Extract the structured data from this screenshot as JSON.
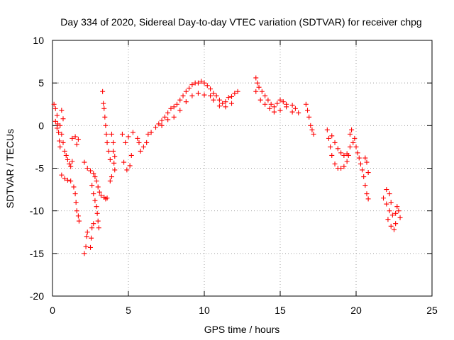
{
  "chart_data": {
    "type": "scatter",
    "title": "Day 334 of 2020, Sidereal Day-to-day VTEC variation (SDTVAR) for receiver chpg",
    "xlabel": "GPS time / hours",
    "ylabel": "SDTVAR / TECUs",
    "xlim": [
      0,
      25
    ],
    "ylim": [
      -20,
      10
    ],
    "xticks": [
      "0",
      "5",
      "10",
      "15",
      "20",
      "25"
    ],
    "yticks": [
      "10",
      "5",
      "0",
      "-5",
      "-10",
      "-15",
      "-20"
    ],
    "grid": true,
    "marker": "plus",
    "color": "#ff0000",
    "series": [
      {
        "name": "SDTVAR",
        "points": [
          [
            0.1,
            2.5
          ],
          [
            0.2,
            2.0
          ],
          [
            0.3,
            1.2
          ],
          [
            0.35,
            0.2
          ],
          [
            0.4,
            -0.8
          ],
          [
            0.45,
            -1.8
          ],
          [
            0.5,
            -2.5
          ],
          [
            0.2,
            0.5
          ],
          [
            0.3,
            -0.3
          ],
          [
            0.5,
            0.0
          ],
          [
            0.6,
            -1.0
          ],
          [
            0.7,
            -2.0
          ],
          [
            0.8,
            -3.0
          ],
          [
            0.9,
            -3.5
          ],
          [
            1.0,
            -4.0
          ],
          [
            1.1,
            -4.5
          ],
          [
            1.2,
            -4.8
          ],
          [
            1.3,
            -4.2
          ],
          [
            0.6,
            1.8
          ],
          [
            0.7,
            0.8
          ],
          [
            0.6,
            -5.8
          ],
          [
            0.8,
            -6.2
          ],
          [
            1.0,
            -6.4
          ],
          [
            1.2,
            -6.5
          ],
          [
            1.4,
            -7.2
          ],
          [
            1.5,
            -8.0
          ],
          [
            1.55,
            -9.0
          ],
          [
            1.6,
            -10.0
          ],
          [
            1.7,
            -10.6
          ],
          [
            1.75,
            -11.2
          ],
          [
            1.3,
            -1.5
          ],
          [
            1.5,
            -1.3
          ],
          [
            1.7,
            -1.6
          ],
          [
            1.6,
            -2.2
          ],
          [
            2.1,
            -15.0
          ],
          [
            2.2,
            -14.2
          ],
          [
            2.25,
            -13.0
          ],
          [
            2.3,
            -12.5
          ],
          [
            2.5,
            -14.3
          ],
          [
            2.55,
            -13.2
          ],
          [
            2.6,
            -12.0
          ],
          [
            2.7,
            -11.5
          ],
          [
            2.1,
            -4.3
          ],
          [
            2.3,
            -5.0
          ],
          [
            2.5,
            -5.3
          ],
          [
            2.7,
            -5.6
          ],
          [
            2.8,
            -6.0
          ],
          [
            2.9,
            -6.5
          ],
          [
            3.0,
            -7.2
          ],
          [
            3.1,
            -7.8
          ],
          [
            3.2,
            -8.2
          ],
          [
            3.4,
            -8.4
          ],
          [
            3.5,
            -8.6
          ],
          [
            3.6,
            -8.5
          ],
          [
            2.6,
            -7.0
          ],
          [
            2.7,
            -8.0
          ],
          [
            2.8,
            -8.8
          ],
          [
            2.9,
            -9.5
          ],
          [
            2.95,
            -10.3
          ],
          [
            3.0,
            -11.2
          ],
          [
            3.05,
            -12.0
          ],
          [
            3.3,
            4.0
          ],
          [
            3.35,
            2.6
          ],
          [
            3.4,
            2.0
          ],
          [
            3.45,
            1.0
          ],
          [
            3.5,
            0.0
          ],
          [
            3.55,
            -1.0
          ],
          [
            3.6,
            -2.0
          ],
          [
            3.7,
            -3.0
          ],
          [
            3.8,
            -4.0
          ],
          [
            3.9,
            -1.0
          ],
          [
            4.0,
            -2.0
          ],
          [
            4.0,
            -3.0
          ],
          [
            4.1,
            -3.6
          ],
          [
            4.05,
            -4.4
          ],
          [
            4.1,
            -5.2
          ],
          [
            3.9,
            -6.0
          ],
          [
            3.8,
            -6.5
          ],
          [
            4.6,
            -1.0
          ],
          [
            4.8,
            -2.0
          ],
          [
            4.7,
            -4.3
          ],
          [
            4.9,
            -5.2
          ],
          [
            5.1,
            -4.7
          ],
          [
            5.2,
            -3.5
          ],
          [
            5.0,
            -1.3
          ],
          [
            5.3,
            -0.8
          ],
          [
            5.6,
            -1.5
          ],
          [
            5.7,
            -2.0
          ],
          [
            5.8,
            -3.0
          ],
          [
            6.0,
            -2.5
          ],
          [
            6.2,
            -2.0
          ],
          [
            6.3,
            -1.0
          ],
          [
            6.5,
            -0.8
          ],
          [
            6.8,
            -0.2
          ],
          [
            7.0,
            0.2
          ],
          [
            7.2,
            0.6
          ],
          [
            7.4,
            1.0
          ],
          [
            7.6,
            1.5
          ],
          [
            7.8,
            2.0
          ],
          [
            8.0,
            2.2
          ],
          [
            8.2,
            2.5
          ],
          [
            8.4,
            3.0
          ],
          [
            8.6,
            3.5
          ],
          [
            8.8,
            4.0
          ],
          [
            9.0,
            4.4
          ],
          [
            9.2,
            4.8
          ],
          [
            9.4,
            5.0
          ],
          [
            9.6,
            5.0
          ],
          [
            9.8,
            5.2
          ],
          [
            10.0,
            5.0
          ],
          [
            10.2,
            4.7
          ],
          [
            10.4,
            4.3
          ],
          [
            7.2,
            0.0
          ],
          [
            7.6,
            0.7
          ],
          [
            8.0,
            1.0
          ],
          [
            8.4,
            1.8
          ],
          [
            8.8,
            2.8
          ],
          [
            9.2,
            3.5
          ],
          [
            9.6,
            3.8
          ],
          [
            10.0,
            3.6
          ],
          [
            10.4,
            3.5
          ],
          [
            10.6,
            3.8
          ],
          [
            10.8,
            3.5
          ],
          [
            11.0,
            3.0
          ],
          [
            11.2,
            2.6
          ],
          [
            11.4,
            2.8
          ],
          [
            11.6,
            3.3
          ],
          [
            11.8,
            3.4
          ],
          [
            12.0,
            3.8
          ],
          [
            12.2,
            4.0
          ],
          [
            10.6,
            3.0
          ],
          [
            11.0,
            2.3
          ],
          [
            11.4,
            2.2
          ],
          [
            11.8,
            2.6
          ],
          [
            13.4,
            5.6
          ],
          [
            13.5,
            5.0
          ],
          [
            13.6,
            4.5
          ],
          [
            13.8,
            4.0
          ],
          [
            14.0,
            3.5
          ],
          [
            14.2,
            3.0
          ],
          [
            14.4,
            2.5
          ],
          [
            14.6,
            2.2
          ],
          [
            14.8,
            2.6
          ],
          [
            15.0,
            3.0
          ],
          [
            15.2,
            2.8
          ],
          [
            15.4,
            2.5
          ],
          [
            13.4,
            4.0
          ],
          [
            13.7,
            3.0
          ],
          [
            14.0,
            2.5
          ],
          [
            14.3,
            2.0
          ],
          [
            14.6,
            1.6
          ],
          [
            15.0,
            1.8
          ],
          [
            15.4,
            2.2
          ],
          [
            15.8,
            2.4
          ],
          [
            16.0,
            2.0
          ],
          [
            16.2,
            1.5
          ],
          [
            15.8,
            1.6
          ],
          [
            16.7,
            2.5
          ],
          [
            16.8,
            1.8
          ],
          [
            16.9,
            1.0
          ],
          [
            17.0,
            0.0
          ],
          [
            17.1,
            -0.5
          ],
          [
            17.2,
            -1.0
          ],
          [
            18.1,
            -0.5
          ],
          [
            18.2,
            -1.5
          ],
          [
            18.3,
            -2.5
          ],
          [
            18.4,
            -3.5
          ],
          [
            18.6,
            -4.5
          ],
          [
            18.8,
            -5.0
          ],
          [
            19.0,
            -5.0
          ],
          [
            19.2,
            -4.8
          ],
          [
            19.4,
            -4.2
          ],
          [
            19.5,
            -3.5
          ],
          [
            18.4,
            -1.2
          ],
          [
            18.6,
            -2.0
          ],
          [
            18.8,
            -2.7
          ],
          [
            19.0,
            -3.2
          ],
          [
            19.2,
            -3.5
          ],
          [
            19.4,
            -3.3
          ],
          [
            19.6,
            -2.5
          ],
          [
            19.8,
            -2.0
          ],
          [
            19.6,
            -1.0
          ],
          [
            19.7,
            -0.5
          ],
          [
            19.9,
            -1.5
          ],
          [
            20.0,
            -2.5
          ],
          [
            20.1,
            -3.2
          ],
          [
            20.2,
            -3.8
          ],
          [
            20.3,
            -4.5
          ],
          [
            20.4,
            -5.2
          ],
          [
            20.5,
            -6.0
          ],
          [
            20.6,
            -7.0
          ],
          [
            20.7,
            -8.0
          ],
          [
            20.8,
            -8.6
          ],
          [
            20.6,
            -3.8
          ],
          [
            20.7,
            -4.3
          ],
          [
            20.8,
            -5.5
          ],
          [
            21.8,
            -8.5
          ],
          [
            22.0,
            -9.2
          ],
          [
            22.2,
            -10.0
          ],
          [
            22.4,
            -10.5
          ],
          [
            22.6,
            -10.3
          ],
          [
            22.8,
            -10.0
          ],
          [
            22.9,
            -10.8
          ],
          [
            22.7,
            -9.5
          ],
          [
            22.0,
            -7.5
          ],
          [
            22.2,
            -8.0
          ],
          [
            22.3,
            -9.0
          ],
          [
            22.1,
            -11.0
          ],
          [
            22.3,
            -11.8
          ],
          [
            22.5,
            -12.2
          ],
          [
            22.6,
            -11.5
          ]
        ]
      }
    ]
  }
}
